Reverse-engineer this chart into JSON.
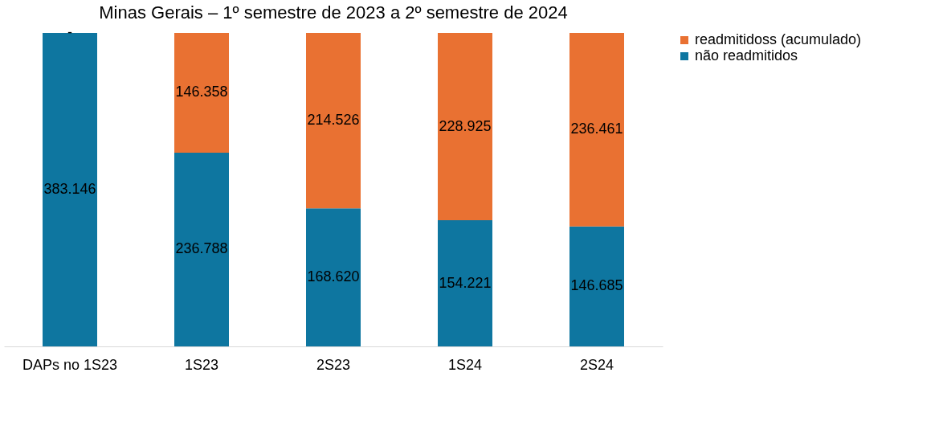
{
  "chart_data": {
    "type": "bar",
    "title": "Minas Gerais – 1º semestre de 2023 a 2º semestre de 2024",
    "stacked": true,
    "legend": "right",
    "categories": [
      "DAPs no 1S23",
      "1S23",
      "2S23",
      "1S24",
      "2S24"
    ],
    "series": [
      {
        "name": "não readmitidos",
        "color": "#0e76a0",
        "values": [
          383146,
          236788,
          168620,
          154221,
          146685
        ],
        "value_labels": [
          "383.146",
          "236.788",
          "168.620",
          "154.221",
          "146.685"
        ]
      },
      {
        "name": "readmitidoss (acumulado)",
        "color": "#e97132",
        "values": [
          0,
          146358,
          214526,
          228925,
          236461
        ],
        "value_labels": [
          "-",
          "146.358",
          "214.526",
          "228.925",
          "236.461"
        ]
      }
    ]
  }
}
